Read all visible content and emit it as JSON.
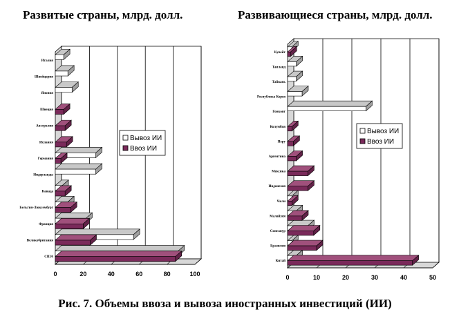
{
  "caption": "Рис. 7. Объемы ввоза и вывоза иностранных инвестиций (ИИ)",
  "colors": {
    "export": "#ffffff",
    "export_top": "#c8c8c8",
    "import": "#7a2a5a",
    "import_top": "#a0507c",
    "wall": "#d8d8d8",
    "edge": "#000000"
  },
  "chart_data": [
    {
      "type": "bar",
      "orientation": "horizontal",
      "title": "Развитые страны, млрд. долл.",
      "categories": [
        "США",
        "Великобритания",
        "Франция",
        "Бельгия-Люксембург",
        "Канада",
        "Нидерланды",
        "Германия",
        "Испания",
        "Австралия",
        "Швеция",
        "Япония",
        "Швейцария",
        "Италия"
      ],
      "series": [
        {
          "name": "Вывоз ИИ",
          "values": [
            88,
            56,
            22,
            9,
            5,
            29,
            29,
            0,
            0,
            0,
            12,
            9,
            6
          ]
        },
        {
          "name": "Ввоз ИИ",
          "values": [
            86,
            25,
            20,
            11,
            7,
            0,
            4,
            8,
            7,
            6,
            0,
            0,
            0
          ]
        }
      ],
      "xlim": [
        0,
        100
      ],
      "xticks": [
        "0",
        "20",
        "40",
        "60",
        "80",
        "100"
      ],
      "grid": true,
      "legend": "center-right"
    },
    {
      "type": "bar",
      "orientation": "horizontal",
      "title": "Развивающиеся страны, млрд. долл.",
      "categories": [
        "Китай",
        "Бразилия",
        "Сингапур",
        "Малайзия",
        "Чили",
        "Индонезия",
        "Мексика",
        "Аргентина",
        "Перу",
        "Колумбия",
        "Гонконг",
        "Республика Корея",
        "Тайвань",
        "Таиланд",
        "Кувейт"
      ],
      "series": [
        {
          "name": "Вывоз ИИ",
          "values": [
            3,
            1.5,
            7,
            3,
            1.5,
            0,
            0,
            0,
            0,
            0,
            27,
            5,
            3,
            3,
            1.5
          ]
        },
        {
          "name": "Ввоз ИИ",
          "values": [
            43,
            10,
            9,
            5,
            1.5,
            7,
            7,
            3,
            2,
            1.5,
            0,
            0,
            0,
            0,
            1
          ]
        }
      ],
      "xlim": [
        0,
        50
      ],
      "xticks": [
        "0",
        "10",
        "20",
        "30",
        "40",
        "50"
      ],
      "grid": true,
      "legend": "center-right"
    }
  ]
}
